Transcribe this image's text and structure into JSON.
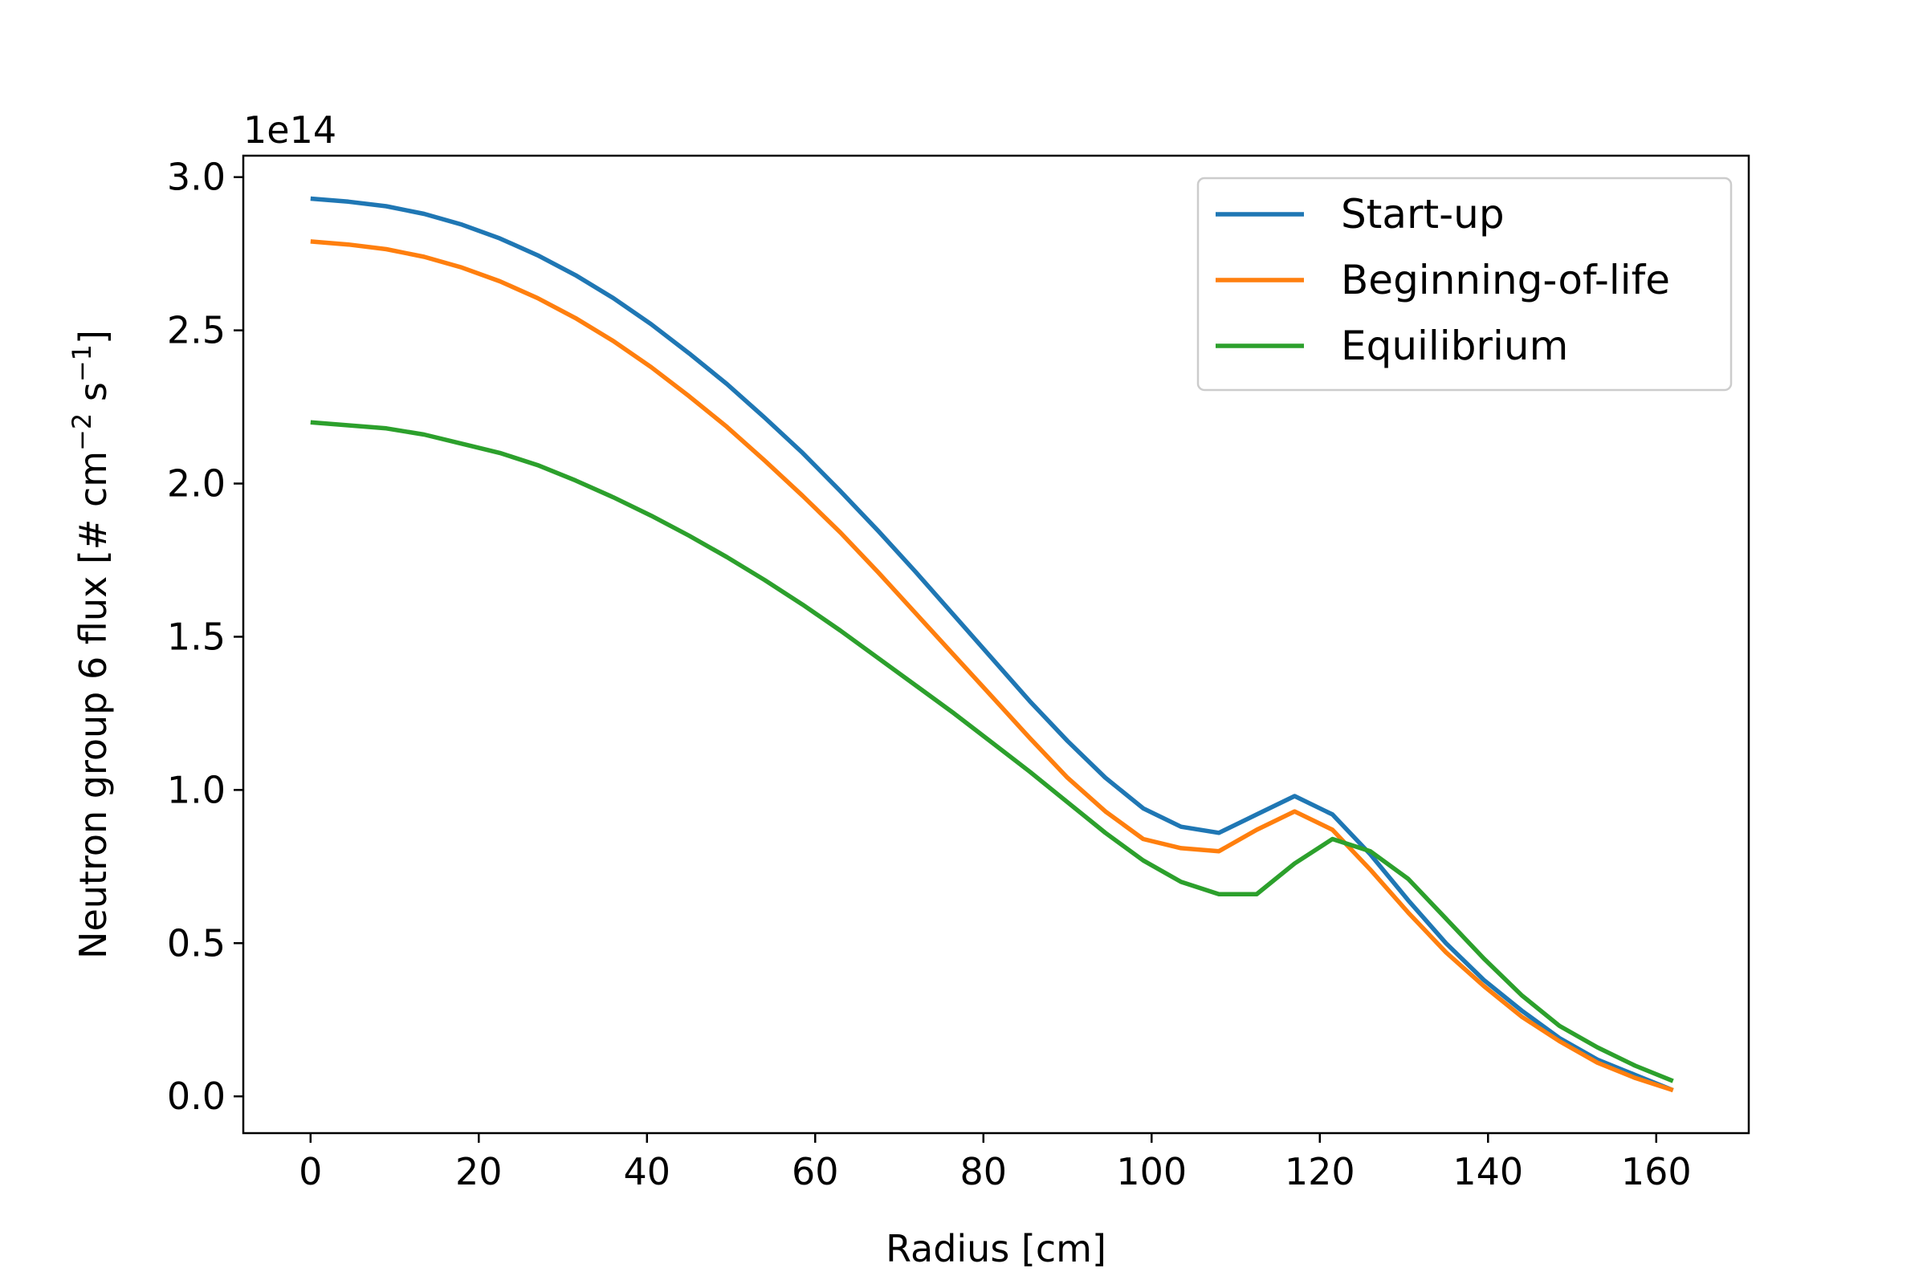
{
  "chart_data": {
    "type": "line",
    "title": "",
    "xlabel": "Radius [cm]",
    "ylabel_main": "Neutron group 6 flux [# cm",
    "ylabel_exp1": "−2",
    "ylabel_mid": " s",
    "ylabel_exp2": "−1",
    "ylabel_end": "]",
    "y_offset_label": "1e14",
    "xlim": [
      -8,
      171
    ],
    "ylim": [
      -0.12,
      3.07
    ],
    "y_multiplier": 100000000000000.0,
    "xticks": [
      0,
      20,
      40,
      60,
      80,
      100,
      120,
      140,
      160
    ],
    "xtick_labels": [
      "0",
      "20",
      "40",
      "60",
      "80",
      "100",
      "120",
      "140",
      "160"
    ],
    "yticks": [
      0.0,
      0.5,
      1.0,
      1.5,
      2.0,
      2.5,
      3.0
    ],
    "ytick_labels": [
      "0.0",
      "0.5",
      "1.0",
      "1.5",
      "2.0",
      "2.5",
      "3.0"
    ],
    "grid": false,
    "legend_position": "top-right",
    "x": [
      0,
      4.5,
      9,
      13.5,
      18,
      22.5,
      27,
      31.5,
      36,
      40.5,
      45,
      49.5,
      54,
      58.5,
      63,
      67.5,
      72,
      76.5,
      81,
      85.5,
      90,
      94.5,
      99,
      103.5,
      108,
      112.5,
      117,
      121.5,
      126,
      130.5,
      135,
      139.5,
      144,
      148.5,
      153,
      157.5,
      162
    ],
    "series": [
      {
        "name": "Start-up",
        "color": "#1f77b4",
        "values": [
          2.93,
          2.92,
          2.905,
          2.88,
          2.845,
          2.8,
          2.745,
          2.68,
          2.605,
          2.52,
          2.425,
          2.325,
          2.215,
          2.1,
          1.975,
          1.845,
          1.71,
          1.57,
          1.43,
          1.29,
          1.16,
          1.04,
          0.94,
          0.88,
          0.86,
          0.92,
          0.98,
          0.92,
          0.79,
          0.64,
          0.5,
          0.38,
          0.28,
          0.19,
          0.12,
          0.07,
          0.02
        ]
      },
      {
        "name": "Beginning-of-life",
        "color": "#ff7f0e",
        "values": [
          2.79,
          2.78,
          2.765,
          2.74,
          2.705,
          2.66,
          2.605,
          2.54,
          2.465,
          2.38,
          2.285,
          2.185,
          2.075,
          1.96,
          1.84,
          1.71,
          1.575,
          1.44,
          1.305,
          1.17,
          1.04,
          0.93,
          0.84,
          0.81,
          0.8,
          0.87,
          0.93,
          0.87,
          0.74,
          0.6,
          0.47,
          0.36,
          0.26,
          0.18,
          0.11,
          0.06,
          0.02
        ]
      },
      {
        "name": "Equilibrium",
        "color": "#2ca02c",
        "values": [
          2.2,
          2.19,
          2.18,
          2.16,
          2.13,
          2.1,
          2.06,
          2.01,
          1.955,
          1.895,
          1.83,
          1.76,
          1.685,
          1.605,
          1.52,
          1.43,
          1.34,
          1.25,
          1.155,
          1.06,
          0.96,
          0.86,
          0.77,
          0.7,
          0.66,
          0.66,
          0.76,
          0.84,
          0.8,
          0.71,
          0.58,
          0.45,
          0.33,
          0.23,
          0.16,
          0.1,
          0.05
        ]
      }
    ]
  }
}
